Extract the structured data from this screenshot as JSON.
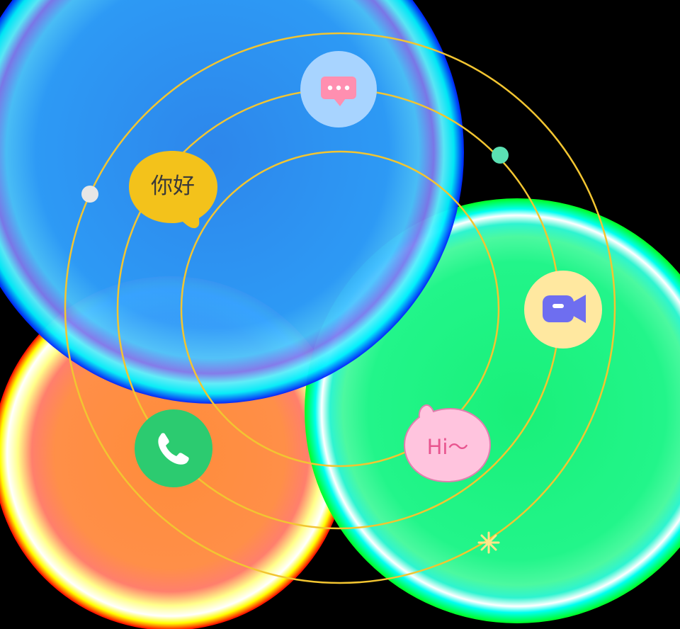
{
  "bubbles": {
    "greeting_cn": "你好",
    "greeting_en": "Hi～"
  },
  "icons": {
    "message": "chat-dots-icon",
    "video": "video-camera-icon",
    "phone": "phone-icon",
    "sparkle": "sparkle-icon"
  },
  "colors": {
    "background": "#000000",
    "blue_blob": "#2E9BFF",
    "green_blob": "#1FF07A",
    "orange_blob": "#FF8A3D",
    "orbit": "#F2C531",
    "cn_bubble": "#F3C21B",
    "en_bubble": "#FFC4DE",
    "en_text": "#E8558F",
    "message_circle": "#A8D4FF",
    "message_icon": "#FF8FB0",
    "video_circle": "#FFE8A0",
    "video_icon": "#6E6EF0",
    "phone_circle": "#2CCB70",
    "dot_gray": "#E6E6E6",
    "dot_teal": "#5BE0B3"
  }
}
